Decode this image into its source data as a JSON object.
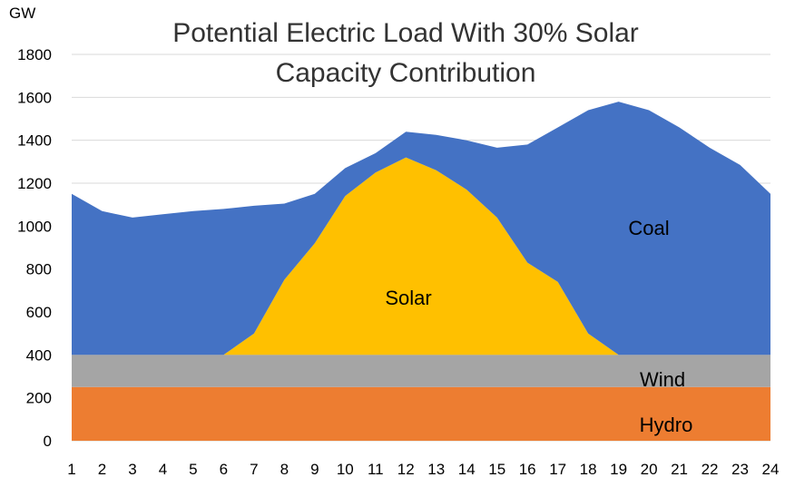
{
  "chart_data": {
    "type": "area",
    "title": [
      "Potential Electric Load With 30% Solar",
      "Capacity Contribution"
    ],
    "ylabel": "GW",
    "xlabel": "",
    "ylim": [
      0,
      1800
    ],
    "yticks": [
      0,
      200,
      400,
      600,
      800,
      1000,
      1200,
      1400,
      1600,
      1800
    ],
    "x": [
      1,
      2,
      3,
      4,
      5,
      6,
      7,
      8,
      9,
      10,
      11,
      12,
      13,
      14,
      15,
      16,
      17,
      18,
      19,
      20,
      21,
      22,
      23,
      24
    ],
    "grid": true,
    "stacking": "cumulative_top",
    "series": [
      {
        "name": "Hydro",
        "color": "#ED7D31",
        "top": [
          250,
          250,
          250,
          250,
          250,
          250,
          250,
          250,
          250,
          250,
          250,
          250,
          250,
          250,
          250,
          250,
          250,
          250,
          250,
          250,
          250,
          250,
          250,
          250
        ]
      },
      {
        "name": "Wind",
        "color": "#A5A5A5",
        "top": [
          400,
          400,
          400,
          400,
          400,
          400,
          400,
          400,
          400,
          400,
          400,
          400,
          400,
          400,
          400,
          400,
          400,
          400,
          400,
          400,
          400,
          400,
          400,
          400
        ]
      },
      {
        "name": "Solar",
        "color": "#FFC000",
        "top": [
          400,
          400,
          400,
          400,
          400,
          400,
          500,
          750,
          920,
          1140,
          1250,
          1320,
          1260,
          1170,
          1040,
          830,
          740,
          500,
          400,
          400,
          400,
          400,
          400,
          400
        ]
      },
      {
        "name": "Coal",
        "color": "#4472C4",
        "top": [
          1150,
          1070,
          1040,
          1055,
          1070,
          1080,
          1095,
          1105,
          1150,
          1270,
          1340,
          1440,
          1425,
          1400,
          1365,
          1380,
          1460,
          1540,
          1580,
          1540,
          1460,
          1365,
          1285,
          1150
        ]
      }
    ],
    "labels": {
      "coal": "Coal",
      "solar": "Solar",
      "wind": "Wind",
      "hydro": "Hydro"
    }
  }
}
